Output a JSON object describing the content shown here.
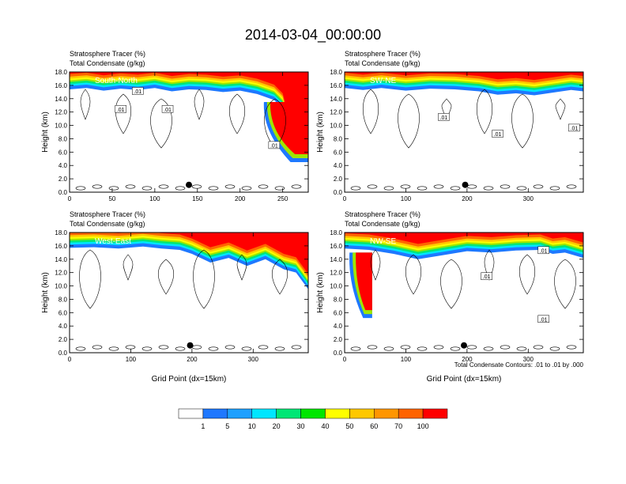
{
  "title": "2014-03-04_00:00:00",
  "footnote": "Total Condensate Contours: .01 to .01 by .000",
  "colors": {
    "levels": [
      "#ffffff",
      "#1e78ff",
      "#1ea0ff",
      "#00e6ff",
      "#00e676",
      "#00e600",
      "#9ee600",
      "#ffff00",
      "#ffc800",
      "#ff9600",
      "#ff6400",
      "#ff0000"
    ],
    "contour": "#000000"
  },
  "colorbar": {
    "labels": [
      "1",
      "5",
      "10",
      "20",
      "30",
      "40",
      "50",
      "60",
      "70",
      "100"
    ]
  },
  "chart_data": [
    {
      "type": "heatmap",
      "label": "South-North",
      "header1": "Stratosphere Tracer   (%)",
      "header2": "Total Condensate   (g/kg)",
      "ylabel": "Height (km)",
      "xlabel": "",
      "xlim": [
        0,
        280
      ],
      "ylim": [
        0,
        18
      ],
      "xticks": [
        "0",
        "50",
        "100",
        "150",
        "200",
        "250"
      ],
      "xtick_values": [
        0,
        50,
        100,
        150,
        200,
        250
      ],
      "yticks": [
        "0.0",
        "2.0",
        "4.0",
        "6.0",
        "8.0",
        "10.0",
        "12.0",
        "14.0",
        "16.0",
        "18.0"
      ],
      "tropopause": [
        [
          0,
          15.4
        ],
        [
          20,
          15.6
        ],
        [
          40,
          15.2
        ],
        [
          60,
          15.5
        ],
        [
          80,
          15.3
        ],
        [
          100,
          15.6
        ],
        [
          120,
          15.1
        ],
        [
          140,
          15.4
        ],
        [
          160,
          15.3
        ],
        [
          180,
          15.0
        ],
        [
          200,
          15.2
        ],
        [
          220,
          14.7
        ],
        [
          240,
          13.8
        ],
        [
          250,
          12.5
        ],
        [
          255,
          10
        ],
        [
          258,
          8.5
        ],
        [
          265,
          7
        ],
        [
          275,
          5.5
        ],
        [
          280,
          4.8
        ]
      ],
      "intrusions": [
        {
          "x0": 228,
          "x1": 280,
          "ytop": 13.5,
          "ybot": 4.5
        }
      ],
      "contour_labels": [
        {
          "x": 60,
          "y": 12.4,
          "text": ".01"
        },
        {
          "x": 115,
          "y": 12.4,
          "text": ".01"
        },
        {
          "x": 80,
          "y": 15.1,
          "text": ".01"
        },
        {
          "x": 240,
          "y": 7.0,
          "text": ".01"
        }
      ],
      "marker": {
        "x": 140,
        "y": 1.1
      }
    },
    {
      "type": "heatmap",
      "label": "SW-NE",
      "header1": "Stratosphere Tracer   (%)",
      "header2": "Total Condensate   (g/kg)",
      "ylabel": "Height (km)",
      "xlabel": "",
      "xlim": [
        0,
        390
      ],
      "ylim": [
        0,
        18
      ],
      "xticks": [
        "0",
        "100",
        "200",
        "300"
      ],
      "xtick_values": [
        0,
        100,
        200,
        300
      ],
      "yticks": [
        "0.0",
        "2.0",
        "4.0",
        "6.0",
        "8.0",
        "10.0",
        "12.0",
        "14.0",
        "16.0",
        "18.0"
      ],
      "tropopause": [
        [
          0,
          15.6
        ],
        [
          30,
          15.3
        ],
        [
          60,
          15.6
        ],
        [
          100,
          15.2
        ],
        [
          140,
          15.5
        ],
        [
          180,
          15.4
        ],
        [
          220,
          15.1
        ],
        [
          250,
          14.6
        ],
        [
          280,
          14.8
        ],
        [
          310,
          14.5
        ],
        [
          340,
          14.9
        ],
        [
          370,
          15.3
        ],
        [
          390,
          15.1
        ]
      ],
      "intrusions": [],
      "contour_labels": [
        {
          "x": 162,
          "y": 11.2,
          "text": ".01"
        },
        {
          "x": 250,
          "y": 8.7,
          "text": ".01"
        },
        {
          "x": 375,
          "y": 9.6,
          "text": ".01"
        }
      ],
      "marker": {
        "x": 197,
        "y": 1.1
      }
    },
    {
      "type": "heatmap",
      "label": "West-East",
      "header1": "Stratosphere Tracer   (%)",
      "header2": "Total Condensate   (g/kg)",
      "ylabel": "Height (km)",
      "xlabel": "Grid Point (dx=15km)",
      "xlim": [
        0,
        390
      ],
      "ylim": [
        0,
        18
      ],
      "xticks": [
        "0",
        "100",
        "200",
        "300"
      ],
      "xtick_values": [
        0,
        100,
        200,
        300
      ],
      "yticks": [
        "0.0",
        "2.0",
        "4.0",
        "6.0",
        "8.0",
        "10.0",
        "12.0",
        "14.0",
        "16.0",
        "18.0"
      ],
      "tropopause": [
        [
          0,
          15.7
        ],
        [
          40,
          15.8
        ],
        [
          80,
          15.6
        ],
        [
          120,
          15.9
        ],
        [
          150,
          15.6
        ],
        [
          180,
          15.4
        ],
        [
          200,
          14.8
        ],
        [
          230,
          13.5
        ],
        [
          260,
          14.2
        ],
        [
          290,
          13.0
        ],
        [
          320,
          14.0
        ],
        [
          350,
          12.5
        ],
        [
          370,
          12.0
        ],
        [
          390,
          9.5
        ]
      ],
      "intrusions": [],
      "contour_labels": [],
      "marker": {
        "x": 197,
        "y": 1.1
      }
    },
    {
      "type": "heatmap",
      "label": "NW-SE",
      "header1": "Stratosphere Tracer   (%)",
      "header2": "Total Condensate   (g/kg)",
      "ylabel": "Height (km)",
      "xlabel": "Grid Point (dx=15km)",
      "xlim": [
        0,
        390
      ],
      "ylim": [
        0,
        18
      ],
      "xticks": [
        "0",
        "100",
        "200",
        "300"
      ],
      "xtick_values": [
        0,
        100,
        200,
        300
      ],
      "yticks": [
        "0.0",
        "2.0",
        "4.0",
        "6.0",
        "8.0",
        "10.0",
        "12.0",
        "14.0",
        "16.0",
        "18.0"
      ],
      "tropopause": [
        [
          0,
          15.6
        ],
        [
          40,
          15.4
        ],
        [
          80,
          14.8
        ],
        [
          120,
          14.0
        ],
        [
          160,
          14.6
        ],
        [
          200,
          15.2
        ],
        [
          240,
          15.0
        ],
        [
          280,
          15.3
        ],
        [
          320,
          15.4
        ],
        [
          340,
          14.8
        ],
        [
          360,
          15.0
        ],
        [
          390,
          14.2
        ]
      ],
      "intrusions": [
        {
          "x0": 8,
          "x1": 45,
          "ytop": 15.0,
          "ybot": 5.2
        }
      ],
      "contour_labels": [
        {
          "x": 232,
          "y": 11.4,
          "text": ".01"
        },
        {
          "x": 325,
          "y": 5.0,
          "text": ".01"
        },
        {
          "x": 325,
          "y": 15.3,
          "text": ".01"
        }
      ],
      "marker": {
        "x": 195,
        "y": 1.1
      }
    }
  ]
}
